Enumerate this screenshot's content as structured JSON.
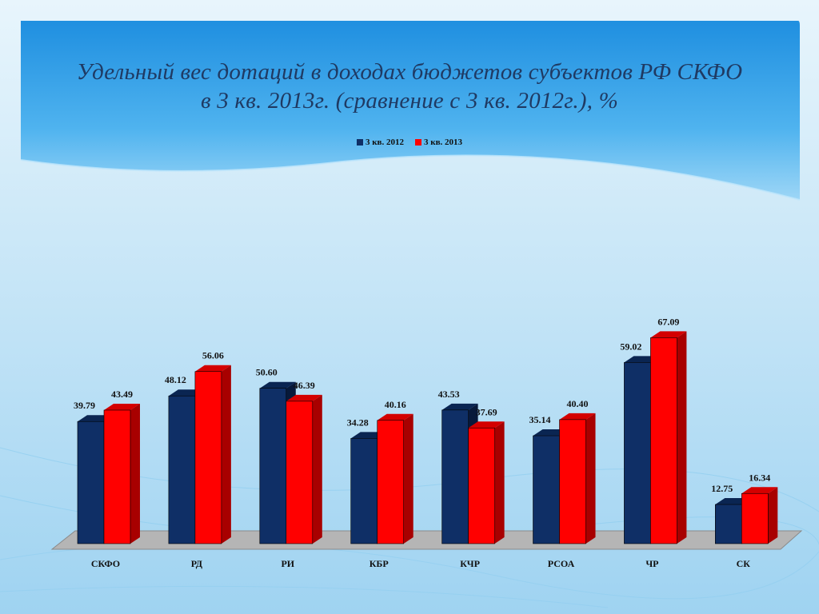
{
  "slide": {
    "title_line1": "Удельный вес дотаций в доходах бюджетов субъектов РФ СКФО",
    "title_line2": "в 3 кв. 2013г. (сравнение с 3 кв. 2012г.), %"
  },
  "colors": {
    "series_2012": "#0f2f66",
    "series_2013": "#ff0000",
    "title": "#1f3a63"
  },
  "chart_data": {
    "type": "bar",
    "categories": [
      "СКФО",
      "РД",
      "РИ",
      "КБР",
      "КЧР",
      "РСОА",
      "ЧР",
      "СК"
    ],
    "series": [
      {
        "name": "3 кв. 2012",
        "values": [
          39.79,
          48.12,
          50.6,
          34.28,
          43.53,
          35.14,
          59.02,
          12.75
        ]
      },
      {
        "name": "3 кв. 2013",
        "values": [
          43.49,
          56.06,
          46.39,
          40.16,
          37.69,
          40.4,
          67.09,
          16.34
        ]
      }
    ],
    "data_labels": [
      [
        "39.79",
        "48.12",
        "50.60",
        "34.28",
        "43.53",
        "35.14",
        "59.02",
        "12.75"
      ],
      [
        "43.49",
        "56.06",
        "46.39",
        "40.16",
        "37.69",
        "40.40",
        "67.09",
        "16.34"
      ]
    ],
    "ylim": [
      0,
      70
    ],
    "grid": false,
    "legend_position": "top"
  }
}
